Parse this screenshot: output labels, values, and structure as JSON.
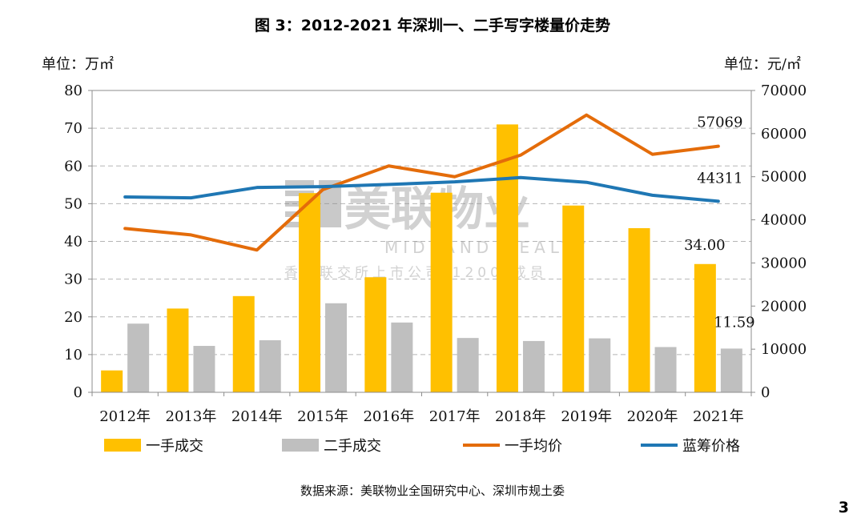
{
  "title": "图 3：2012-2021 年深圳一、二手写字楼量价走势",
  "left_unit": "单位：万㎡",
  "right_unit": "单位：元/㎡",
  "source": "数据来源：美联物业全国研究中心、深圳市规土委",
  "page_number": "3",
  "watermark": {
    "brand": "美联物业",
    "english": "MIDLAND REALTY",
    "tagline": "香港联交所上市公司(1200)成员"
  },
  "chart_data": {
    "type": "bar",
    "categories": [
      "2012年",
      "2013年",
      "2014年",
      "2015年",
      "2016年",
      "2017年",
      "2018年",
      "2019年",
      "2020年",
      "2021年"
    ],
    "y_left": {
      "range": [
        0,
        80
      ],
      "ticks": [
        "0",
        "10",
        "20",
        "30",
        "40",
        "50",
        "60",
        "70",
        "80"
      ]
    },
    "y_right": {
      "range": [
        0,
        70000
      ],
      "ticks": [
        "0",
        "10000",
        "20000",
        "30000",
        "40000",
        "50000",
        "60000",
        "70000"
      ]
    },
    "grid": "horizontal dashed",
    "legend_position": "bottom",
    "series": [
      {
        "name": "一手成交",
        "kind": "bar",
        "axis": "left",
        "color": "#FFC000",
        "values": [
          5.8,
          22.2,
          25.5,
          52.8,
          30.5,
          52.9,
          71.0,
          49.5,
          43.5,
          34.0
        ]
      },
      {
        "name": "二手成交",
        "kind": "bar",
        "axis": "left",
        "color": "#BFBFBF",
        "values": [
          18.2,
          12.3,
          13.8,
          23.6,
          18.5,
          14.4,
          13.6,
          14.3,
          12.0,
          11.59
        ]
      },
      {
        "name": "一手均价",
        "kind": "line",
        "axis": "right",
        "color": "#E46C0A",
        "values": [
          38000,
          36500,
          33000,
          47000,
          52500,
          50000,
          55000,
          64300,
          55200,
          57069
        ]
      },
      {
        "name": "蓝筹价格",
        "kind": "line",
        "axis": "right",
        "color": "#1F77B4",
        "values": [
          45300,
          45100,
          47500,
          47700,
          48200,
          48800,
          49800,
          48700,
          45700,
          44311
        ]
      }
    ],
    "annotations": [
      {
        "text": "57069",
        "series": "一手均价",
        "category": "2021年"
      },
      {
        "text": "44311",
        "series": "蓝筹价格",
        "category": "2021年"
      },
      {
        "text": "34.00",
        "series": "一手成交",
        "category": "2021年"
      },
      {
        "text": "11.59",
        "series": "二手成交",
        "category": "2021年"
      }
    ]
  }
}
